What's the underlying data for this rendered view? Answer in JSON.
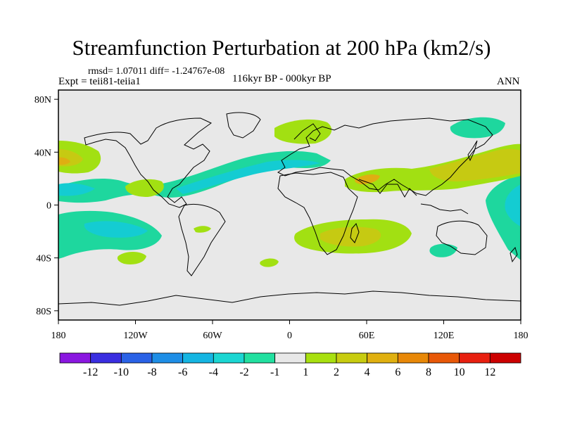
{
  "title": "Streamfunction Perturbation at 200 hPa (km2/s)",
  "stats_line": "rmsd= 1.07011 diff= -1.24767e-08",
  "left_label": "Expt = teii81-teiia1",
  "center_label": "116kyr BP - 000kyr BP",
  "right_label": "ANN",
  "lat_ticks": [
    {
      "label": "80N",
      "lat": 80
    },
    {
      "label": "40N",
      "lat": 40
    },
    {
      "label": "0",
      "lat": 0
    },
    {
      "label": "40S",
      "lat": -40
    },
    {
      "label": "80S",
      "lat": -80
    }
  ],
  "lon_ticks": [
    {
      "label": "180",
      "lon": -180
    },
    {
      "label": "120W",
      "lon": -120
    },
    {
      "label": "60W",
      "lon": -60
    },
    {
      "label": "0",
      "lon": 0
    },
    {
      "label": "60E",
      "lon": 60
    },
    {
      "label": "120E",
      "lon": 120
    },
    {
      "label": "180",
      "lon": 180
    }
  ],
  "colorbar": {
    "labels": [
      "-12",
      "-10",
      "-8",
      "-6",
      "-4",
      "-2",
      "-1",
      "1",
      "2",
      "4",
      "6",
      "8",
      "10",
      "12"
    ],
    "colors": [
      "#8a17e0",
      "#3a2ee0",
      "#2a62e6",
      "#1e8ee6",
      "#15b5e2",
      "#1bd6d2",
      "#22e0a0",
      "#e8e8e8",
      "#a8e010",
      "#c8cc10",
      "#e0b010",
      "#e88808",
      "#e85808",
      "#e82010",
      "#cc0000"
    ]
  },
  "field_levels": {
    "neg_1": "#1ed79e",
    "neg_2": "#14ccd2",
    "pos_1": "#a2e012",
    "pos_2": "#c6ca12",
    "pos_3": "#dfae12",
    "background": "#e8e8e8"
  }
}
